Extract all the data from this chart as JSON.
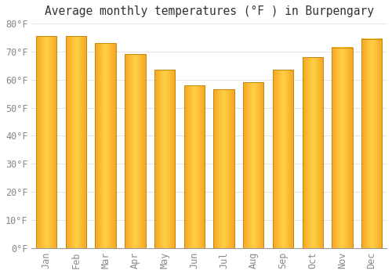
{
  "title": "Average monthly temperatures (°F ) in Burpengary",
  "months": [
    "Jan",
    "Feb",
    "Mar",
    "Apr",
    "May",
    "Jun",
    "Jul",
    "Aug",
    "Sep",
    "Oct",
    "Nov",
    "Dec"
  ],
  "values": [
    75.5,
    75.5,
    73.0,
    69.0,
    63.5,
    58.0,
    56.5,
    59.0,
    63.5,
    68.0,
    71.5,
    74.5
  ],
  "bar_color_left": "#F5A623",
  "bar_color_center": "#FFD046",
  "bar_color_right": "#F5A623",
  "bar_edge_color": "#C8860A",
  "ylim": [
    0,
    80
  ],
  "yticks": [
    0,
    10,
    20,
    30,
    40,
    50,
    60,
    70,
    80
  ],
  "ytick_labels": [
    "0°F",
    "10°F",
    "20°F",
    "30°F",
    "40°F",
    "50°F",
    "60°F",
    "70°F",
    "80°F"
  ],
  "background_color": "#FFFFFF",
  "plot_bg_color": "#FFFFFF",
  "grid_color": "#DDDDDD",
  "title_fontsize": 10.5,
  "tick_fontsize": 8.5,
  "tick_color": "#888888",
  "bar_width": 0.7
}
